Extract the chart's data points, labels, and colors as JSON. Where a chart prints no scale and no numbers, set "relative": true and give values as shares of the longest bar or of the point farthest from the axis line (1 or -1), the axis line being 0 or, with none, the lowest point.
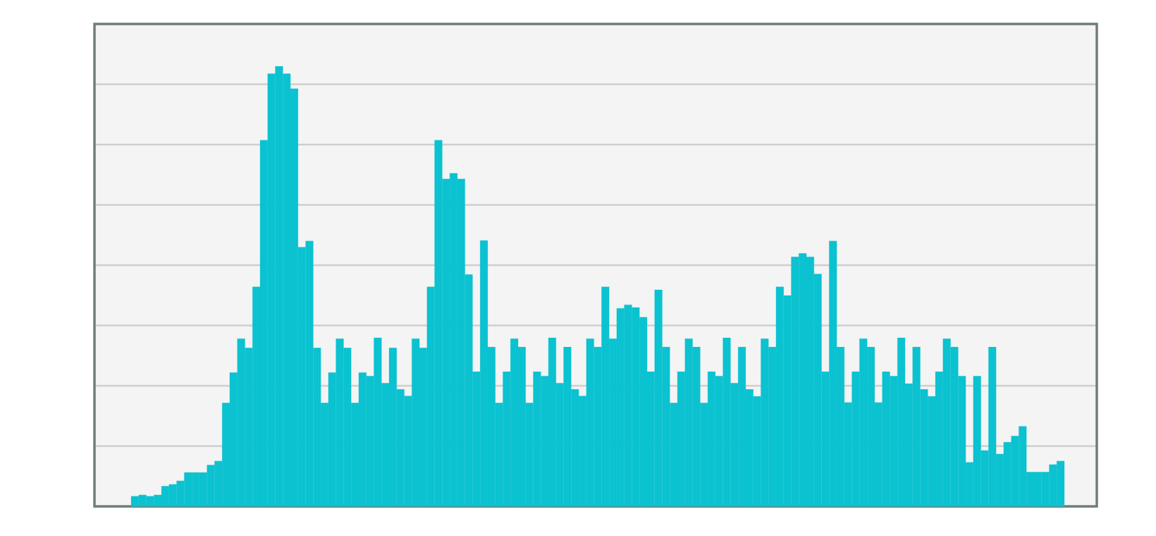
{
  "chart_data": {
    "type": "bar",
    "relative": true,
    "grid": "y",
    "color": "#0bc2d0",
    "categories": [
      null,
      null,
      null,
      null,
      null,
      null,
      null,
      null,
      null,
      null,
      null,
      null,
      null,
      null,
      null,
      null,
      null,
      null,
      null,
      null,
      null,
      null,
      null,
      null,
      null,
      null,
      null,
      null,
      null,
      null,
      null,
      null,
      null,
      null,
      null,
      null,
      null,
      null,
      null,
      null,
      null,
      null,
      null,
      null,
      null,
      null,
      null,
      null,
      null,
      null,
      null,
      null,
      null,
      null,
      null,
      null,
      null,
      null,
      null,
      null,
      null,
      null,
      null,
      null,
      null,
      null,
      null,
      null,
      null,
      null,
      null,
      null,
      null,
      null,
      null,
      null,
      null,
      null,
      null,
      null,
      null,
      null,
      null,
      null,
      null,
      null,
      null,
      null,
      null,
      null,
      null,
      null,
      null,
      null,
      null,
      null,
      null,
      null,
      null,
      null,
      null,
      null,
      null,
      null,
      null,
      null,
      null,
      null,
      null,
      null,
      null,
      null,
      null,
      null,
      null,
      null,
      null,
      null,
      null,
      null,
      null,
      null,
      null
    ],
    "values": [
      0.023,
      0.026,
      0.023,
      0.026,
      0.046,
      0.05,
      0.058,
      0.077,
      0.077,
      0.077,
      0.094,
      0.103,
      0.235,
      0.304,
      0.381,
      0.36,
      0.499,
      0.832,
      0.983,
      1,
      0.983,
      0.949,
      0.589,
      0.603,
      0.36,
      0.235,
      0.304,
      0.381,
      0.36,
      0.235,
      0.304,
      0.296,
      0.383,
      0.28,
      0.36,
      0.266,
      0.251,
      0.381,
      0.36,
      0.499,
      0.832,
      0.744,
      0.757,
      0.744,
      0.527,
      0.306,
      0.604,
      0.362,
      0.235,
      0.306,
      0.381,
      0.362,
      0.235,
      0.306,
      0.296,
      0.383,
      0.28,
      0.362,
      0.266,
      0.251,
      0.381,
      0.362,
      0.499,
      0.381,
      0.45,
      0.458,
      0.452,
      0.43,
      0.306,
      0.492,
      0.362,
      0.235,
      0.306,
      0.381,
      0.362,
      0.235,
      0.306,
      0.296,
      0.383,
      0.28,
      0.362,
      0.266,
      0.25,
      0.381,
      0.362,
      0.499,
      0.479,
      0.567,
      0.575,
      0.567,
      0.528,
      0.306,
      0.603,
      0.362,
      0.236,
      0.306,
      0.381,
      0.362,
      0.236,
      0.306,
      0.296,
      0.383,
      0.279,
      0.362,
      0.266,
      0.25,
      0.306,
      0.381,
      0.362,
      0.296,
      0.1,
      0.296,
      0.127,
      0.362,
      0.119,
      0.146,
      0.16,
      0.182,
      0.078,
      0.078,
      0.078,
      0.095,
      0.103
    ]
  }
}
